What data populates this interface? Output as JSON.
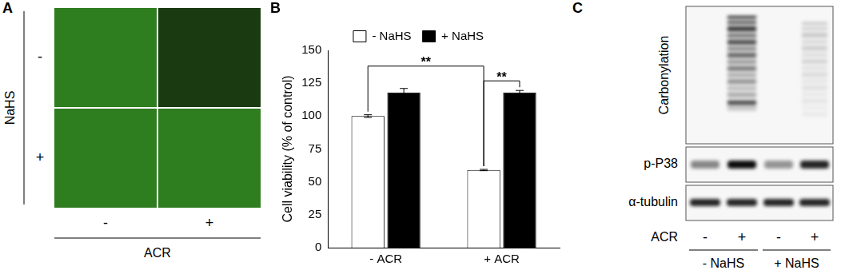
{
  "panel_a": {
    "panel_label": "A",
    "row_title": "NaHS",
    "row_levels": [
      "-",
      "+"
    ],
    "column_title": "ACR",
    "column_levels": [
      "-",
      "+"
    ]
  },
  "chart_data": {
    "panel_label": "B",
    "type": "bar",
    "categories": [
      "- ACR",
      "+ ACR"
    ],
    "series": [
      {
        "name": "- NaHS",
        "color": "#ffffff",
        "values": [
          100,
          59
        ],
        "errors": [
          1,
          0.5
        ]
      },
      {
        "name": "+ NaHS",
        "color": "#000000",
        "values": [
          118,
          118
        ],
        "errors": [
          3,
          1.5
        ]
      }
    ],
    "y_label": "Cell viability (% of control)",
    "ylim": [
      0,
      150
    ],
    "yticks": [
      0,
      25,
      50,
      75,
      100,
      125,
      150
    ],
    "grid": false,
    "legend": "top",
    "annotations": [
      {
        "text": "**",
        "from": {
          "category": "- ACR",
          "series": "- NaHS"
        },
        "to": {
          "category": "+ ACR",
          "series": "- NaHS"
        }
      },
      {
        "text": "**",
        "from": {
          "category": "+ ACR",
          "series": "- NaHS"
        },
        "to": {
          "category": "+ ACR",
          "series": "+ NaHS"
        }
      }
    ]
  },
  "panel_c": {
    "panel_label": "C",
    "blots": [
      "Carbonylation",
      "p-P38",
      "α-tubulin"
    ],
    "lane_title": "ACR",
    "lane_levels": [
      "-",
      "+",
      "-",
      "+"
    ],
    "groups": [
      "- NaHS",
      "+ NaHS"
    ]
  }
}
